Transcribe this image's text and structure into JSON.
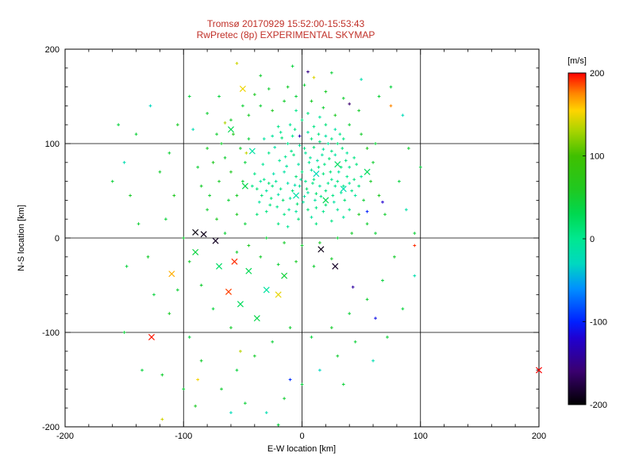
{
  "title": {
    "line1": "Tromsø 20170929 15:52:00-15:53:43",
    "line2": "RwPretec (8p) EXPERIMENTAL SKYMAP"
  },
  "colors": {
    "background": "#ffffff",
    "title": "#c03028",
    "axis": "#000000",
    "colorbar_label": "#c03028"
  },
  "chart_data": {
    "type": "scatter",
    "title": "Tromsø 20170929 15:52:00-15:53:43 / RwPretec (8p) EXPERIMENTAL SKYMAP",
    "xlabel": "E-W location [km]",
    "ylabel": "N-S location [km]",
    "xlim": [
      -200,
      200
    ],
    "ylim": [
      -200,
      200
    ],
    "xticks": [
      -200,
      -100,
      0,
      100,
      200
    ],
    "yticks": [
      -200,
      -100,
      0,
      100,
      200
    ],
    "grid": true,
    "legend_position": "none",
    "colorbar": {
      "label": "[m/s]",
      "min": -200,
      "max": 200,
      "ticks": [
        200,
        100,
        0,
        -100,
        -200
      ],
      "stops": [
        {
          "v": -200,
          "c": "#000000"
        },
        {
          "v": -160,
          "c": "#3a006f"
        },
        {
          "v": -120,
          "c": "#2000d0"
        },
        {
          "v": -100,
          "c": "#0020ff"
        },
        {
          "v": -60,
          "c": "#0090ff"
        },
        {
          "v": -30,
          "c": "#00d8c0"
        },
        {
          "v": 0,
          "c": "#00e890"
        },
        {
          "v": 30,
          "c": "#00d850"
        },
        {
          "v": 60,
          "c": "#20c820"
        },
        {
          "v": 100,
          "c": "#40c000"
        },
        {
          "v": 130,
          "c": "#a8d400"
        },
        {
          "v": 155,
          "c": "#ffd400"
        },
        {
          "v": 175,
          "c": "#ff8800"
        },
        {
          "v": 200,
          "c": "#ff0000"
        }
      ]
    },
    "points": [
      [
        -2,
        55,
        -5
      ],
      [
        3,
        60,
        0
      ],
      [
        -8,
        50,
        10
      ],
      [
        5,
        48,
        -10
      ],
      [
        10,
        62,
        5
      ],
      [
        -12,
        58,
        -15
      ],
      [
        0,
        70,
        8
      ],
      [
        8,
        72,
        -5
      ],
      [
        -5,
        65,
        12
      ],
      [
        15,
        55,
        -8
      ],
      [
        -18,
        52,
        5
      ],
      [
        2,
        44,
        -12
      ],
      [
        12,
        47,
        15
      ],
      [
        -10,
        42,
        -5
      ],
      [
        6,
        80,
        0
      ],
      [
        -3,
        78,
        -10
      ],
      [
        18,
        68,
        10
      ],
      [
        -15,
        70,
        -12
      ],
      [
        22,
        58,
        3
      ],
      [
        -22,
        60,
        -6
      ],
      [
        4,
        52,
        18
      ],
      [
        -6,
        56,
        -18
      ],
      [
        9,
        58,
        6
      ],
      [
        -1,
        62,
        -3
      ],
      [
        14,
        75,
        12
      ],
      [
        -13,
        76,
        -9
      ],
      [
        20,
        50,
        9
      ],
      [
        -20,
        46,
        -14
      ],
      [
        25,
        62,
        2
      ],
      [
        -25,
        55,
        7
      ],
      [
        1,
        38,
        -7
      ],
      [
        -4,
        36,
        14
      ],
      [
        11,
        40,
        -11
      ],
      [
        16,
        44,
        4
      ],
      [
        -16,
        40,
        16
      ],
      [
        7,
        85,
        -4
      ],
      [
        -7,
        88,
        9
      ],
      [
        13,
        82,
        -13
      ],
      [
        19,
        78,
        7
      ],
      [
        -19,
        82,
        -2
      ],
      [
        24,
        70,
        11
      ],
      [
        -24,
        68,
        -16
      ],
      [
        28,
        55,
        1
      ],
      [
        -28,
        58,
        13
      ],
      [
        3,
        90,
        -6
      ],
      [
        -9,
        92,
        4
      ],
      [
        17,
        88,
        -9
      ],
      [
        23,
        84,
        15
      ],
      [
        -14,
        86,
        -1
      ],
      [
        30,
        60,
        8
      ],
      [
        -30,
        50,
        -11
      ],
      [
        26,
        45,
        5
      ],
      [
        -26,
        42,
        10
      ],
      [
        31,
        70,
        -7
      ],
      [
        -32,
        62,
        3
      ],
      [
        5,
        30,
        12
      ],
      [
        -5,
        28,
        -8
      ],
      [
        12,
        32,
        6
      ],
      [
        -11,
        30,
        -4
      ],
      [
        20,
        35,
        14
      ],
      [
        -21,
        33,
        2
      ],
      [
        27,
        38,
        -12
      ],
      [
        -27,
        35,
        9
      ],
      [
        33,
        48,
        -3
      ],
      [
        -34,
        45,
        11
      ],
      [
        2,
        95,
        7
      ],
      [
        -2,
        98,
        -5
      ],
      [
        10,
        96,
        13
      ],
      [
        -12,
        100,
        3
      ],
      [
        18,
        94,
        -8
      ],
      [
        25,
        92,
        6
      ],
      [
        -23,
        96,
        -13
      ],
      [
        35,
        55,
        4
      ],
      [
        -35,
        60,
        -9
      ],
      [
        8,
        105,
        10
      ],
      [
        -8,
        108,
        -2
      ],
      [
        15,
        102,
        8
      ],
      [
        -17,
        106,
        12
      ],
      [
        22,
        100,
        -6
      ],
      [
        38,
        65,
        2
      ],
      [
        -38,
        52,
        15
      ],
      [
        40,
        58,
        -4
      ],
      [
        -15,
        25,
        7
      ],
      [
        8,
        22,
        -9
      ],
      [
        -3,
        20,
        11
      ],
      [
        18,
        28,
        3
      ],
      [
        30,
        30,
        -5
      ],
      [
        -30,
        28,
        8
      ],
      [
        36,
        40,
        13
      ],
      [
        -36,
        38,
        -7
      ],
      [
        42,
        50,
        5
      ],
      [
        33,
        75,
        9
      ],
      [
        -33,
        78,
        -3
      ],
      [
        37,
        82,
        7
      ],
      [
        28,
        88,
        -10
      ],
      [
        -28,
        90,
        4
      ],
      [
        34,
        95,
        11
      ],
      [
        5,
        112,
        -7
      ],
      [
        -6,
        115,
        5
      ],
      [
        14,
        110,
        9
      ],
      [
        20,
        108,
        -12
      ],
      [
        -18,
        112,
        2
      ],
      [
        10,
        118,
        6
      ],
      [
        -10,
        120,
        -4
      ],
      [
        0,
        125,
        8
      ],
      [
        25,
        105,
        3
      ],
      [
        -25,
        108,
        -8
      ],
      [
        30,
        100,
        12
      ],
      [
        40,
        75,
        -2
      ],
      [
        -40,
        68,
        6
      ],
      [
        44,
        62,
        10
      ],
      [
        45,
        45,
        -6
      ],
      [
        -42,
        55,
        3
      ],
      [
        12,
        15,
        8
      ],
      [
        -12,
        12,
        -3
      ],
      [
        25,
        18,
        5
      ],
      [
        -20,
        15,
        10
      ],
      [
        35,
        22,
        -7
      ],
      [
        40,
        30,
        4
      ],
      [
        -38,
        25,
        12
      ],
      [
        48,
        55,
        7
      ],
      [
        50,
        65,
        -3
      ],
      [
        46,
        78,
        9
      ],
      [
        38,
        90,
        -5
      ],
      [
        44,
        85,
        6
      ],
      [
        32,
        110,
        3
      ],
      [
        -32,
        105,
        -9
      ],
      [
        20,
        120,
        11
      ],
      [
        -20,
        118,
        5
      ],
      [
        15,
        128,
        -6
      ],
      [
        5,
        132,
        9
      ],
      [
        -5,
        135,
        3
      ],
      [
        28,
        115,
        -11
      ],
      [
        35,
        105,
        7
      ],
      [
        -50,
        60,
        45
      ],
      [
        -55,
        45,
        55
      ],
      [
        -48,
        80,
        40
      ],
      [
        -60,
        70,
        60
      ],
      [
        -52,
        95,
        50
      ],
      [
        -45,
        105,
        42
      ],
      [
        -58,
        110,
        65
      ],
      [
        -65,
        85,
        48
      ],
      [
        -70,
        60,
        55
      ],
      [
        -62,
        40,
        45
      ],
      [
        -55,
        25,
        58
      ],
      [
        -48,
        15,
        42
      ],
      [
        -68,
        100,
        52
      ],
      [
        -75,
        80,
        60
      ],
      [
        -78,
        45,
        48
      ],
      [
        -45,
        130,
        55
      ],
      [
        -35,
        140,
        45
      ],
      [
        -25,
        135,
        60
      ],
      [
        -15,
        145,
        50
      ],
      [
        -5,
        150,
        42
      ],
      [
        8,
        145,
        55
      ],
      [
        18,
        138,
        48
      ],
      [
        28,
        130,
        58
      ],
      [
        40,
        120,
        45
      ],
      [
        50,
        110,
        52
      ],
      [
        55,
        95,
        60
      ],
      [
        60,
        80,
        48
      ],
      [
        58,
        60,
        55
      ],
      [
        52,
        40,
        45
      ],
      [
        48,
        25,
        58
      ],
      [
        55,
        15,
        48
      ],
      [
        42,
        5,
        52
      ],
      [
        30,
        0,
        45
      ],
      [
        15,
        -5,
        55
      ],
      [
        0,
        -8,
        48
      ],
      [
        -15,
        -5,
        52
      ],
      [
        -30,
        0,
        45
      ],
      [
        -45,
        -8,
        58
      ],
      [
        -55,
        -15,
        48
      ],
      [
        -35,
        -20,
        52
      ],
      [
        -20,
        -28,
        45
      ],
      [
        -5,
        -25,
        55
      ],
      [
        10,
        -30,
        48
      ],
      [
        25,
        -22,
        52
      ],
      [
        -65,
        5,
        45
      ],
      [
        -72,
        20,
        58
      ],
      [
        -80,
        30,
        48
      ],
      [
        -85,
        55,
        52
      ],
      [
        -88,
        75,
        45
      ],
      [
        -80,
        95,
        55
      ],
      [
        -72,
        110,
        48
      ],
      [
        -60,
        125,
        52
      ],
      [
        -50,
        140,
        45
      ],
      [
        -40,
        152,
        58
      ],
      [
        -28,
        158,
        48
      ],
      [
        -12,
        160,
        52
      ],
      [
        2,
        162,
        45
      ],
      [
        20,
        155,
        55
      ],
      [
        35,
        148,
        48
      ],
      [
        48,
        135,
        52
      ],
      [
        62,
        100,
        45
      ],
      [
        65,
        45,
        58
      ],
      [
        70,
        25,
        50
      ],
      [
        62,
        5,
        44
      ],
      [
        -95,
        150,
        40
      ],
      [
        -105,
        120,
        55
      ],
      [
        -112,
        90,
        45
      ],
      [
        -120,
        70,
        50
      ],
      [
        -108,
        45,
        60
      ],
      [
        -115,
        20,
        42
      ],
      [
        -100,
        0,
        48
      ],
      [
        -95,
        -25,
        52
      ],
      [
        -105,
        -55,
        45
      ],
      [
        -112,
        -80,
        55
      ],
      [
        -95,
        -105,
        40
      ],
      [
        -85,
        -130,
        50
      ],
      [
        -100,
        -160,
        44
      ],
      [
        -90,
        -178,
        56
      ],
      [
        -118,
        -145,
        48
      ],
      [
        -125,
        -60,
        40
      ],
      [
        -130,
        -20,
        52
      ],
      [
        -138,
        15,
        46
      ],
      [
        -145,
        45,
        54
      ],
      [
        -150,
        80,
        -20
      ],
      [
        -140,
        110,
        44
      ],
      [
        -128,
        140,
        -30
      ],
      [
        75,
        160,
        40
      ],
      [
        85,
        130,
        -25
      ],
      [
        90,
        95,
        48
      ],
      [
        82,
        60,
        40
      ],
      [
        88,
        30,
        -15
      ],
      [
        95,
        5,
        44
      ],
      [
        78,
        -20,
        52
      ],
      [
        68,
        -45,
        40
      ],
      [
        55,
        -65,
        48
      ],
      [
        40,
        -80,
        44
      ],
      [
        25,
        -95,
        52
      ],
      [
        8,
        -105,
        40
      ],
      [
        -10,
        -95,
        48
      ],
      [
        -25,
        -110,
        44
      ],
      [
        -40,
        -125,
        52
      ],
      [
        -55,
        -140,
        40
      ],
      [
        -68,
        -160,
        48
      ],
      [
        -48,
        -175,
        44
      ],
      [
        -30,
        -185,
        -20
      ],
      [
        -15,
        -170,
        48
      ],
      [
        0,
        -155,
        40
      ],
      [
        15,
        -140,
        -30
      ],
      [
        30,
        -125,
        48
      ],
      [
        45,
        -110,
        44
      ],
      [
        -60,
        -95,
        52
      ],
      [
        -75,
        -75,
        40
      ],
      [
        -85,
        -50,
        48
      ],
      [
        25,
        175,
        44
      ],
      [
        -8,
        182,
        40
      ],
      [
        -35,
        172,
        48
      ],
      [
        50,
        168,
        -18
      ],
      [
        65,
        150,
        44
      ],
      [
        -70,
        150,
        40
      ],
      [
        -80,
        132,
        48
      ],
      [
        -92,
        115,
        -22
      ],
      [
        100,
        75,
        40
      ],
      [
        -150,
        -100,
        44
      ],
      [
        -135,
        -140,
        40
      ],
      [
        -60,
        -185,
        -25
      ],
      [
        -20,
        -198,
        40
      ],
      [
        35,
        -155,
        44
      ],
      [
        60,
        -130,
        -20
      ],
      [
        -155,
        120,
        40
      ],
      [
        -160,
        60,
        44
      ],
      [
        -148,
        -30,
        40
      ],
      [
        95,
        -40,
        -18
      ],
      [
        85,
        -75,
        40
      ],
      [
        72,
        -105,
        44
      ],
      [
        -45,
        -35,
        30,
        1
      ],
      [
        -30,
        -55,
        -10,
        1
      ],
      [
        -15,
        -40,
        45,
        1
      ],
      [
        -52,
        -70,
        25,
        1
      ],
      [
        -38,
        -85,
        35,
        1
      ],
      [
        -70,
        -30,
        20,
        1
      ],
      [
        -90,
        -15,
        40,
        1
      ],
      [
        -60,
        115,
        30,
        1
      ],
      [
        -42,
        92,
        -12,
        1
      ],
      [
        55,
        70,
        25,
        1
      ],
      [
        35,
        52,
        -20,
        1
      ],
      [
        20,
        40,
        30,
        1
      ],
      [
        -5,
        45,
        -15,
        1
      ],
      [
        -48,
        55,
        35,
        1
      ],
      [
        12,
        68,
        -25,
        1
      ],
      [
        30,
        78,
        20,
        1
      ],
      [
        200,
        -140,
        200,
        1
      ],
      [
        95,
        -8,
        192
      ],
      [
        -127,
        -105,
        196,
        1
      ],
      [
        -62,
        -57,
        188,
        1
      ],
      [
        -57,
        -25,
        192,
        1
      ],
      [
        -110,
        -38,
        165,
        1
      ],
      [
        -88,
        -150,
        152
      ],
      [
        -118,
        -192,
        142
      ],
      [
        -50,
        158,
        150,
        1
      ],
      [
        -65,
        122,
        132
      ],
      [
        75,
        140,
        175
      ],
      [
        -52,
        -120,
        135
      ],
      [
        -20,
        -60,
        148,
        1
      ],
      [
        -47,
        90,
        138
      ],
      [
        -90,
        6,
        -195,
        1
      ],
      [
        -83,
        4,
        -192,
        1
      ],
      [
        -73,
        -3,
        -188,
        1
      ],
      [
        16,
        -12,
        -192,
        1
      ],
      [
        28,
        -30,
        -186,
        1
      ],
      [
        5,
        176,
        -150
      ],
      [
        40,
        142,
        -160
      ],
      [
        68,
        38,
        -120
      ],
      [
        43,
        -52,
        -140
      ],
      [
        -2,
        108,
        -130
      ],
      [
        55,
        28,
        -100
      ],
      [
        -10,
        -150,
        -95
      ],
      [
        62,
        -85,
        -110
      ],
      [
        -55,
        185,
        140
      ],
      [
        10,
        170,
        145
      ]
    ]
  }
}
